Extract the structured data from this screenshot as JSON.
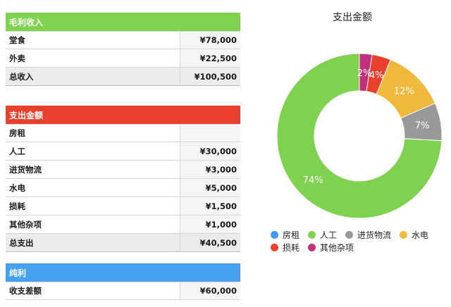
{
  "income": {
    "header": "毛利收入",
    "rows": [
      {
        "label": "堂食",
        "value": "¥78,000"
      },
      {
        "label": "外卖",
        "value": "¥22,500"
      }
    ],
    "total": {
      "label": "总收入",
      "value": "¥100,500"
    }
  },
  "expense": {
    "header": "支出金额",
    "rows": [
      {
        "label": "房租",
        "value": ""
      },
      {
        "label": "人工",
        "value": "¥30,000"
      },
      {
        "label": "进货物流",
        "value": "¥3,000"
      },
      {
        "label": "水电",
        "value": "¥5,000"
      },
      {
        "label": "损耗",
        "value": "¥1,500"
      },
      {
        "label": "其他杂项",
        "value": "¥1,000"
      }
    ],
    "total": {
      "label": "总支出",
      "value": "¥40,500"
    }
  },
  "profit": {
    "header": "纯利",
    "rows": [
      {
        "label": "收支差额",
        "value": "¥60,000"
      }
    ]
  },
  "chart_data": {
    "type": "pie",
    "title": "支出金额",
    "categories": [
      "房租",
      "人工",
      "进货物流",
      "水电",
      "损耗",
      "其他杂项"
    ],
    "values": [
      0,
      30000,
      3000,
      5000,
      1500,
      1000
    ],
    "labels": [
      "",
      "74%",
      "7%",
      "12%",
      "4%",
      "2%"
    ],
    "colors": [
      "#3f9af0",
      "#7fd24f",
      "#999999",
      "#f0b93c",
      "#e8402c",
      "#c2307a"
    ],
    "legend": "bottom"
  }
}
